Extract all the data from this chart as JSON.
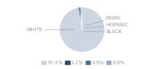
{
  "labels": [
    "WHITE",
    "ASIAN",
    "HISPANIC",
    "BLACK"
  ],
  "values": [
    97.1,
    1.1,
    0.9,
    0.9
  ],
  "colors": [
    "#cdd5e0",
    "#2d4f6b",
    "#4a7096",
    "#9aaec0"
  ],
  "legend_labels": [
    "97.1%",
    "1.1%",
    "0.9%",
    "0.9%"
  ],
  "legend_colors": [
    "#cdd5e0",
    "#2d4f6b",
    "#4a7096",
    "#9aaec0"
  ],
  "bg_color": "#ffffff",
  "label_fontsize": 5.0,
  "legend_fontsize": 5.0,
  "text_color": "#999999"
}
